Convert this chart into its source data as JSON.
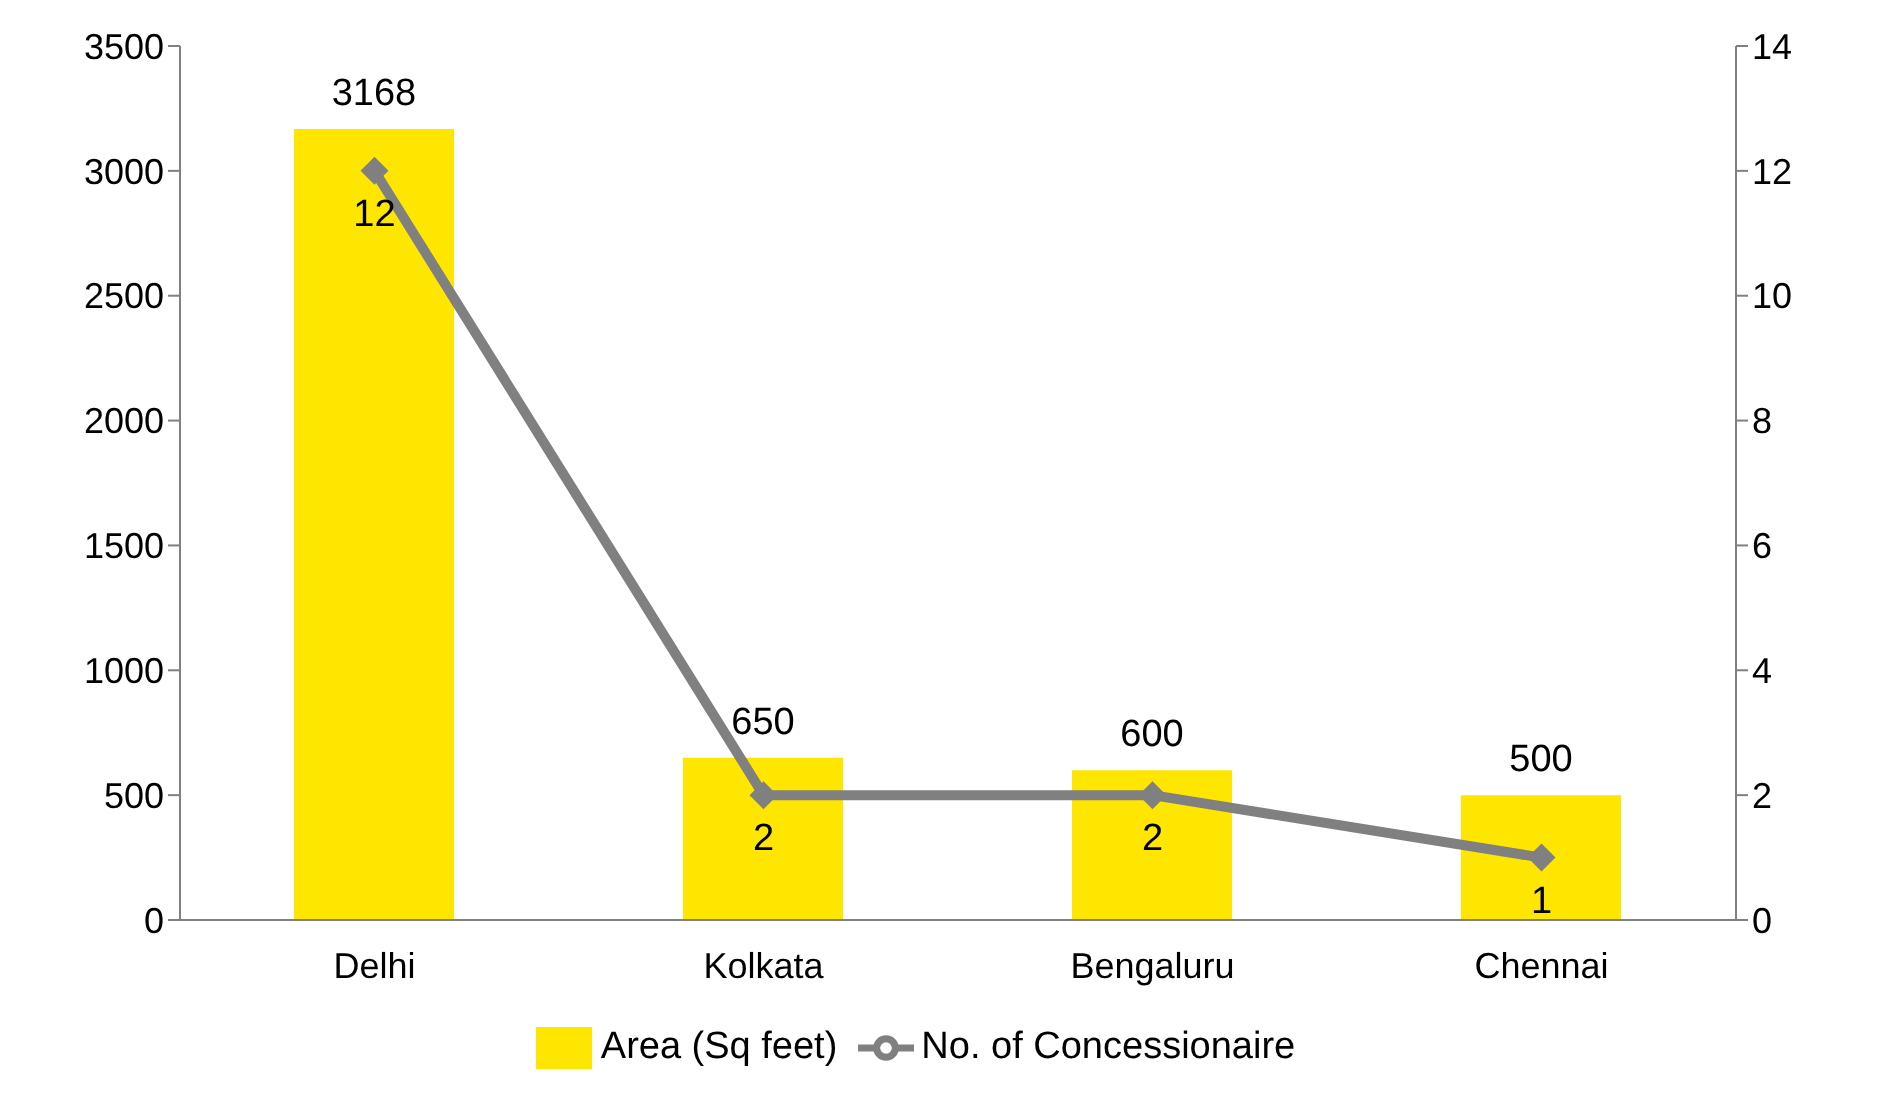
{
  "chart_data": {
    "type": "bar",
    "categories": [
      "Delhi",
      "Kolkata",
      "Bengaluru",
      "Chennai"
    ],
    "series": [
      {
        "name": "Area (Sq feet)",
        "color": "#ffe600",
        "values": [
          3168,
          650,
          600,
          500
        ]
      },
      {
        "name": "No. of Concessionaire",
        "type": "line",
        "axis": "y2",
        "color": "#808080",
        "values": [
          12,
          2,
          2,
          1
        ]
      }
    ],
    "ylim": [
      0,
      3500
    ],
    "yticks": [
      0,
      500,
      1000,
      1500,
      2000,
      2500,
      3000,
      3500
    ],
    "y2lim": [
      0,
      14
    ],
    "y2ticks": [
      0,
      2,
      4,
      6,
      8,
      10,
      12,
      14
    ],
    "data_labels": true,
    "marker": "diamond",
    "legend": "bottom"
  }
}
